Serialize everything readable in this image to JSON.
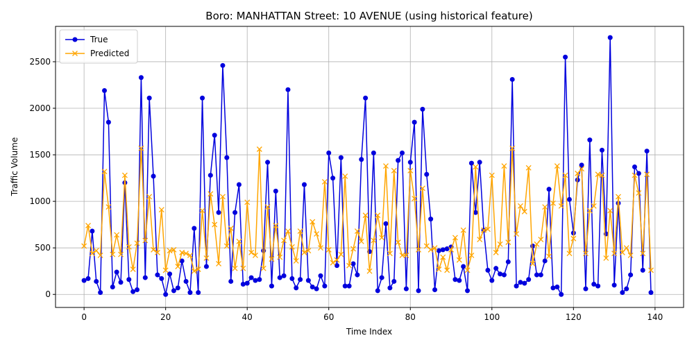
{
  "chart_data": {
    "type": "line",
    "title": "Boro: MANHATTAN Street: 10 AVENUE (using historical feature)",
    "xlabel": "Time Index",
    "ylabel": "Traffic Volume",
    "xlim": [
      -7,
      147
    ],
    "ylim": [
      -140,
      2880
    ],
    "x_ticks": [
      0,
      20,
      40,
      60,
      80,
      100,
      120,
      140
    ],
    "y_ticks": [
      0,
      500,
      1000,
      1500,
      2000,
      2500
    ],
    "grid": true,
    "legend_position": "upper-left",
    "series": [
      {
        "name": "True",
        "color": "#0000dd",
        "marker": "circle",
        "values": [
          150,
          170,
          680,
          140,
          20,
          2190,
          1850,
          80,
          240,
          130,
          1200,
          160,
          30,
          50,
          2330,
          180,
          2110,
          1270,
          210,
          170,
          0,
          220,
          40,
          70,
          360,
          140,
          20,
          710,
          20,
          2110,
          300,
          1280,
          1710,
          880,
          2460,
          1470,
          140,
          880,
          1180,
          110,
          120,
          180,
          150,
          160,
          470,
          1420,
          90,
          1110,
          180,
          200,
          2200,
          170,
          70,
          160,
          1180,
          150,
          80,
          60,
          200,
          90,
          1520,
          1250,
          310,
          1470,
          90,
          90,
          330,
          210,
          1450,
          2110,
          460,
          1520,
          40,
          180,
          760,
          70,
          140,
          1440,
          1520,
          60,
          1420,
          1850,
          40,
          1990,
          1290,
          810,
          50,
          470,
          480,
          490,
          510,
          160,
          150,
          300,
          40,
          1410,
          880,
          1420,
          690,
          260,
          150,
          280,
          220,
          210,
          350,
          2310,
          90,
          130,
          120,
          160,
          520,
          210,
          210,
          360,
          1130,
          70,
          80,
          0,
          2550,
          1020,
          660,
          1230,
          1390,
          60,
          1660,
          110,
          90,
          1550,
          650,
          2760,
          100,
          980,
          20,
          60,
          210,
          1370,
          1300,
          260,
          1540,
          20
        ]
      },
      {
        "name": "Predicted",
        "color": "#ffa500",
        "marker": "x",
        "values": [
          520,
          740,
          440,
          470,
          420,
          1320,
          940,
          430,
          640,
          430,
          1280,
          510,
          270,
          550,
          1570,
          580,
          1050,
          480,
          450,
          910,
          260,
          470,
          480,
          300,
          450,
          440,
          420,
          250,
          270,
          900,
          390,
          1080,
          750,
          330,
          1050,
          520,
          710,
          280,
          570,
          280,
          990,
          450,
          420,
          1560,
          280,
          940,
          380,
          740,
          400,
          580,
          680,
          510,
          360,
          680,
          450,
          470,
          780,
          650,
          500,
          1210,
          480,
          340,
          370,
          430,
          1270,
          310,
          490,
          680,
          570,
          850,
          250,
          580,
          850,
          610,
          1380,
          440,
          1330,
          560,
          420,
          420,
          1330,
          1030,
          480,
          1140,
          520,
          480,
          500,
          270,
          400,
          260,
          480,
          610,
          370,
          690,
          260,
          420,
          1370,
          590,
          690,
          700,
          1280,
          450,
          540,
          1380,
          560,
          1570,
          650,
          950,
          890,
          1360,
          330,
          540,
          590,
          940,
          410,
          980,
          1380,
          950,
          1280,
          440,
          600,
          1300,
          1350,
          440,
          900,
          950,
          1290,
          1280,
          390,
          900,
          440,
          1050,
          450,
          500,
          420,
          1280,
          1090,
          440,
          1290,
          260
        ]
      }
    ]
  }
}
